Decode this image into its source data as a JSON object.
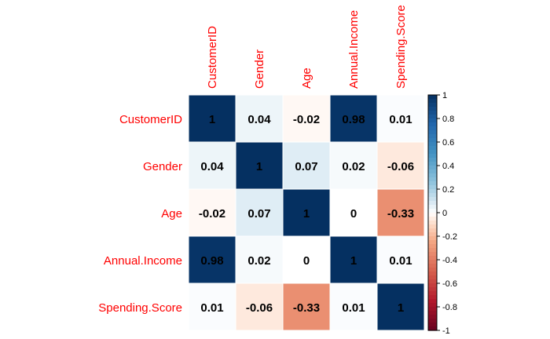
{
  "chart_data": {
    "type": "heatmap",
    "title": "",
    "variables": [
      "CustomerID",
      "Gender",
      "Age",
      "Annual.Income",
      "Spending.Score"
    ],
    "matrix": [
      [
        1,
        0.04,
        -0.02,
        0.98,
        0.01
      ],
      [
        0.04,
        1,
        0.07,
        0.02,
        -0.06
      ],
      [
        -0.02,
        0.07,
        1,
        0,
        -0.33
      ],
      [
        0.98,
        0.02,
        0,
        1,
        0.01
      ],
      [
        0.01,
        -0.06,
        -0.33,
        0.01,
        1
      ]
    ],
    "cell_labels": [
      [
        "1",
        "0.04",
        "-0.02",
        "0.98",
        "0.01"
      ],
      [
        "0.04",
        "1",
        "0.07",
        "0.02",
        "-0.06"
      ],
      [
        "-0.02",
        "0.07",
        "1",
        "0",
        "-0.33"
      ],
      [
        "0.98",
        "0.02",
        "0",
        "1",
        "0.01"
      ],
      [
        "0.01",
        "-0.06",
        "-0.33",
        "0.01",
        "1"
      ]
    ],
    "colorbar": {
      "range": [
        -1,
        1
      ],
      "ticks": [
        "1",
        "0.8",
        "0.6",
        "0.4",
        "0.2",
        "0",
        "-0.2",
        "-0.4",
        "-0.6",
        "-0.8",
        "-1"
      ],
      "tick_values": [
        1,
        0.8,
        0.6,
        0.4,
        0.2,
        0,
        -0.2,
        -0.4,
        -0.6,
        -0.8,
        -1
      ],
      "placement": "right"
    },
    "label_color": "#ff0000",
    "value_color": "#000000",
    "grid_color": "#ffffff",
    "colors": {
      "negative_end": "#67001f",
      "neutral": "#f7f7f7",
      "positive_end": "#053061"
    }
  }
}
